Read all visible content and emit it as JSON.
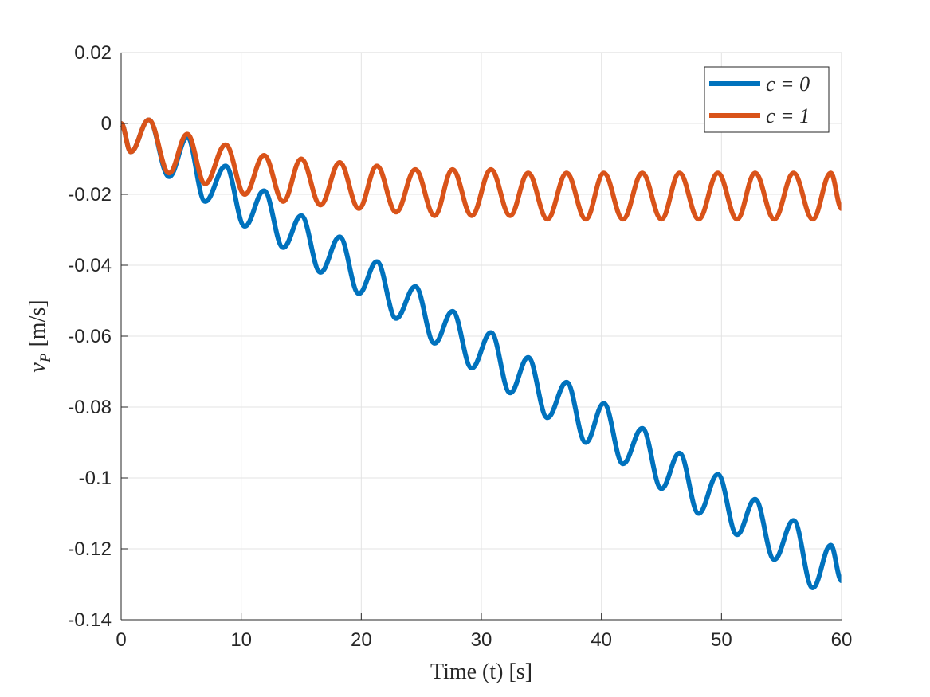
{
  "chart_data": {
    "type": "line",
    "xlabel": "Time (t) [s]",
    "ylabel": {
      "symbol": "v",
      "subscript": "P",
      "unit": "[m/s]"
    },
    "x": [
      0,
      0.8,
      2.3,
      4,
      5.5,
      7,
      8.7,
      10.3,
      11.9,
      13.5,
      15,
      16.6,
      18.2,
      19.8,
      21.3,
      22.9,
      24.5,
      26.1,
      27.6,
      29.2,
      30.8,
      32.4,
      33.9,
      35.5,
      37.1,
      38.7,
      40.2,
      41.8,
      43.4,
      45,
      46.5,
      48.1,
      49.7,
      51.3,
      52.8,
      54.4,
      56,
      57.6,
      59.1,
      60
    ],
    "series": [
      {
        "name": "c = 0",
        "color": "#0072BD",
        "values": [
          0,
          -0.008,
          0.001,
          -0.015,
          -0.004,
          -0.022,
          -0.012,
          -0.029,
          -0.019,
          -0.035,
          -0.026,
          -0.042,
          -0.032,
          -0.048,
          -0.039,
          -0.055,
          -0.046,
          -0.062,
          -0.053,
          -0.069,
          -0.059,
          -0.076,
          -0.066,
          -0.083,
          -0.073,
          -0.09,
          -0.079,
          -0.096,
          -0.086,
          -0.103,
          -0.093,
          -0.11,
          -0.099,
          -0.116,
          -0.106,
          -0.123,
          -0.112,
          -0.131,
          -0.119,
          -0.129
        ]
      },
      {
        "name": "c = 1",
        "color": "#D95319",
        "values": [
          0,
          -0.008,
          0.001,
          -0.014,
          -0.003,
          -0.017,
          -0.006,
          -0.02,
          -0.009,
          -0.022,
          -0.01,
          -0.023,
          -0.011,
          -0.024,
          -0.012,
          -0.025,
          -0.013,
          -0.026,
          -0.013,
          -0.026,
          -0.013,
          -0.026,
          -0.014,
          -0.027,
          -0.014,
          -0.027,
          -0.014,
          -0.027,
          -0.014,
          -0.027,
          -0.014,
          -0.027,
          -0.014,
          -0.027,
          -0.014,
          -0.027,
          -0.014,
          -0.027,
          -0.014,
          -0.024
        ]
      }
    ],
    "xlim": [
      0,
      60
    ],
    "xticks": [
      0,
      10,
      20,
      30,
      40,
      50,
      60
    ],
    "ylim": [
      -0.14,
      0.02
    ],
    "yticks": [
      -0.14,
      -0.12,
      -0.1,
      -0.08,
      -0.06,
      -0.04,
      -0.02,
      0,
      0.02
    ],
    "grid": true,
    "legend": "upper right"
  }
}
